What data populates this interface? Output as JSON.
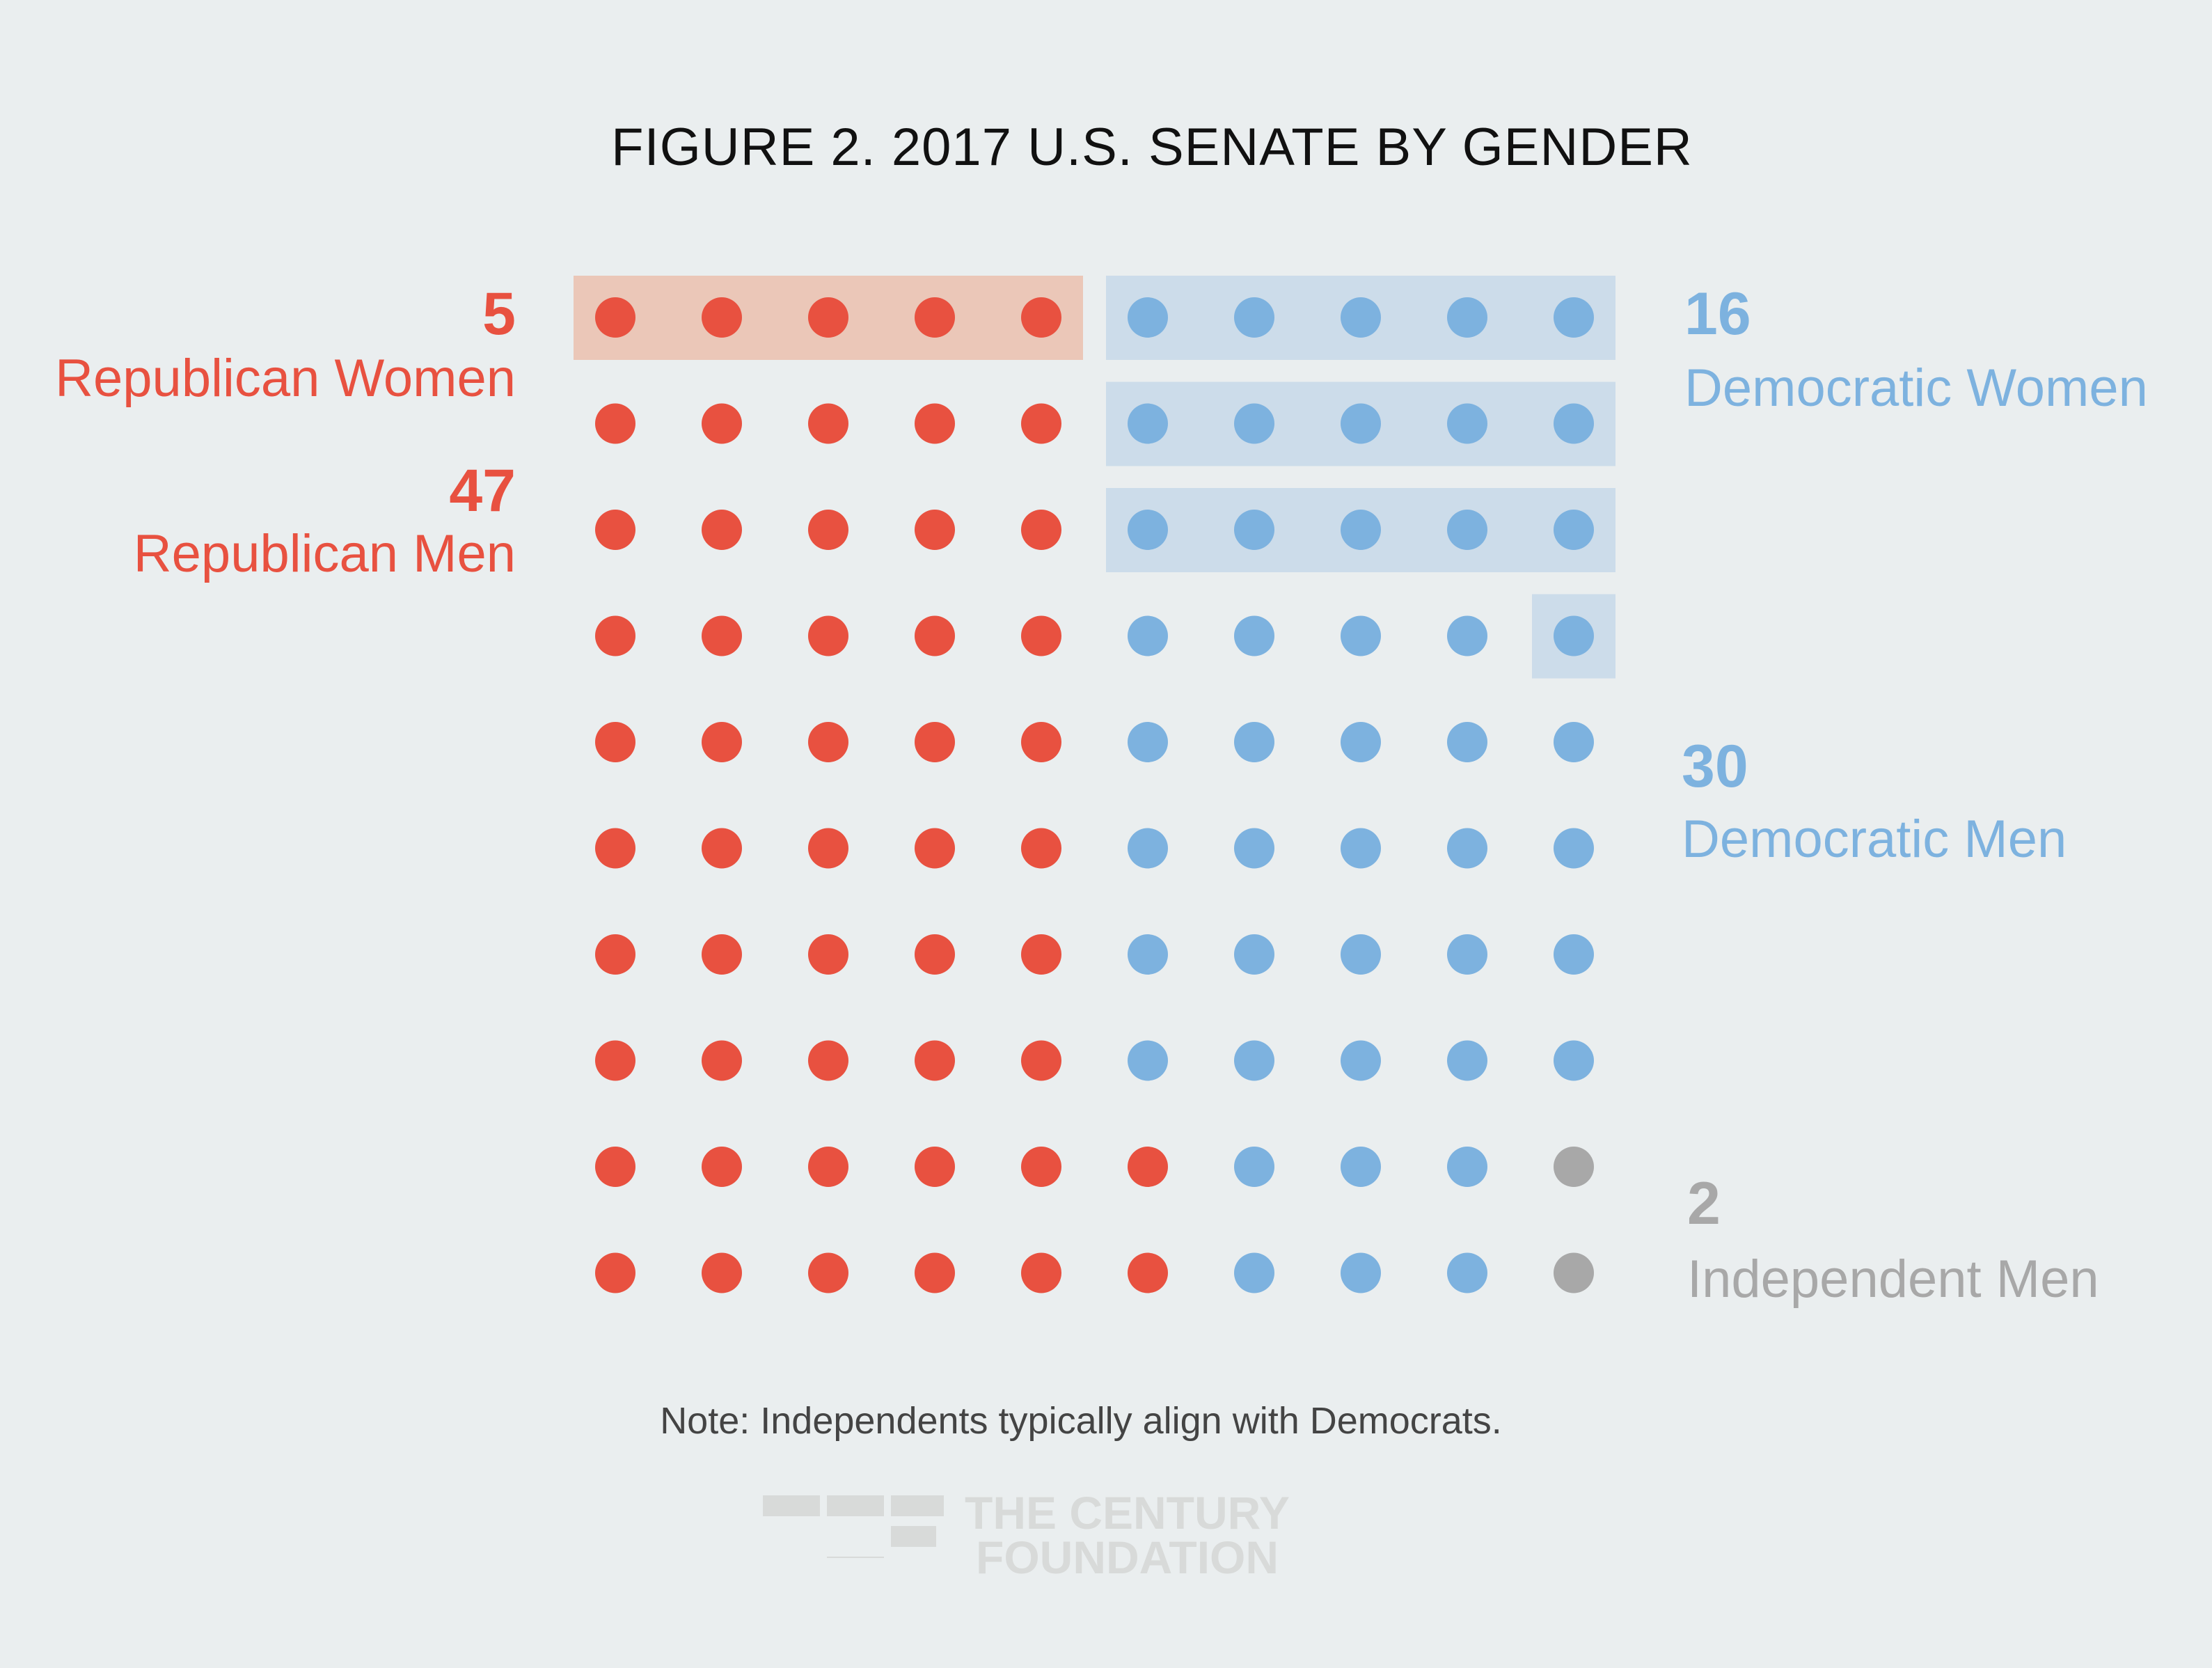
{
  "chart_data": {
    "type": "heatmap",
    "title": "FIGURE 2. 2017 U.S. SENATE BY GENDER",
    "categories": [
      {
        "code": "RW",
        "count": 5,
        "label": "Republican Women",
        "color": "#E85140",
        "highlight": "#EBC7B8"
      },
      {
        "code": "RM",
        "count": 47,
        "label": "Republican Men",
        "color": "#E85140"
      },
      {
        "code": "DW",
        "count": 16,
        "label": "Democratic Women",
        "color": "#7DB2DF",
        "highlight": "#CCDCEA"
      },
      {
        "code": "DM",
        "count": 30,
        "label": "Democratic Men",
        "color": "#7DB2DF"
      },
      {
        "code": "IM",
        "count": 2,
        "label": "Independent Men",
        "color": "#A8A8A8"
      }
    ],
    "grid": [
      [
        "RW",
        "RW",
        "RW",
        "RW",
        "RW",
        "DW",
        "DW",
        "DW",
        "DW",
        "DW"
      ],
      [
        "RM",
        "RM",
        "RM",
        "RM",
        "RM",
        "DW",
        "DW",
        "DW",
        "DW",
        "DW"
      ],
      [
        "RM",
        "RM",
        "RM",
        "RM",
        "RM",
        "DW",
        "DW",
        "DW",
        "DW",
        "DW"
      ],
      [
        "RM",
        "RM",
        "RM",
        "RM",
        "RM",
        "DM",
        "DM",
        "DM",
        "DM",
        "DW"
      ],
      [
        "RM",
        "RM",
        "RM",
        "RM",
        "RM",
        "DM",
        "DM",
        "DM",
        "DM",
        "DM"
      ],
      [
        "RM",
        "RM",
        "RM",
        "RM",
        "RM",
        "DM",
        "DM",
        "DM",
        "DM",
        "DM"
      ],
      [
        "RM",
        "RM",
        "RM",
        "RM",
        "RM",
        "DM",
        "DM",
        "DM",
        "DM",
        "DM"
      ],
      [
        "RM",
        "RM",
        "RM",
        "RM",
        "RM",
        "DM",
        "DM",
        "DM",
        "DM",
        "DM"
      ],
      [
        "RM",
        "RM",
        "RM",
        "RM",
        "RM",
        "RM",
        "DM",
        "DM",
        "DM",
        "IM"
      ],
      [
        "RM",
        "RM",
        "RM",
        "RM",
        "RM",
        "RM",
        "DM",
        "DM",
        "DM",
        "IM"
      ]
    ],
    "legend": {
      "rw_count": "5",
      "rw_label": "Republican Women",
      "rm_count": "47",
      "rm_label": "Republican Men",
      "dw_count": "16",
      "dw_label": "Democratic Women",
      "dm_count": "30",
      "dm_label": "Democratic Men",
      "im_count": "2",
      "im_label": "Independent Men"
    },
    "note": "Note: Independents typically align with Democrats."
  },
  "logo": {
    "line1": "THE CENTURY",
    "line2": "FOUNDATION",
    "color": "#D8DAD9"
  },
  "background": "#EAEEEF"
}
